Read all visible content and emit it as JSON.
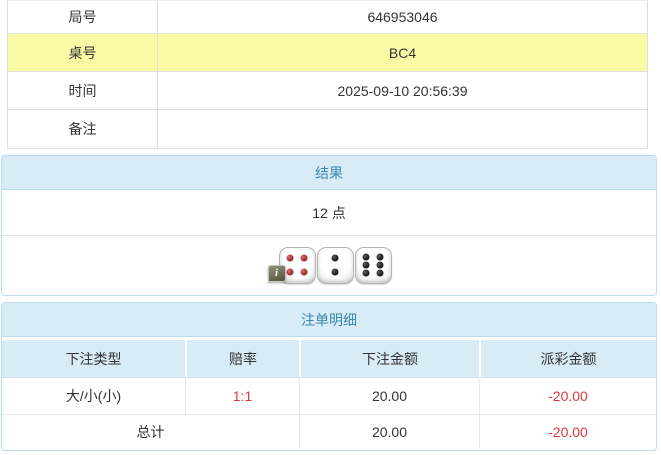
{
  "info_table": {
    "rows": [
      {
        "label": "局号",
        "value": "646953046",
        "highlight": false
      },
      {
        "label": "桌号",
        "value": "BC4",
        "highlight": true
      },
      {
        "label": "时间",
        "value": "2025-09-10 20:56:39",
        "highlight": false
      },
      {
        "label": "备注",
        "value": "",
        "highlight": false
      }
    ]
  },
  "result_panel": {
    "title": "结果",
    "points": "12 点",
    "dice": [
      {
        "value": 4,
        "color": "red"
      },
      {
        "value": 2,
        "color": "black"
      },
      {
        "value": 6,
        "color": "black"
      }
    ],
    "badge_label": "i"
  },
  "bets_panel": {
    "title": "注单明细",
    "columns": [
      "下注类型",
      "赔率",
      "下注金额",
      "派彩金额"
    ],
    "rows": [
      {
        "type": "大/小(小)",
        "odds": "1:1",
        "bet": "20.00",
        "payout": "-20.00"
      }
    ],
    "total": {
      "label": "总计",
      "bet": "20.00",
      "payout": "-20.00"
    }
  },
  "colors": {
    "highlight_yellow": "#fbfba5",
    "panel_border": "#b7dff0",
    "panel_header_bg": "#d7ecf7",
    "panel_header_text": "#3a87ad",
    "negative_red": "#e0383e",
    "border_gray": "#dddddd",
    "text": "#333333"
  }
}
